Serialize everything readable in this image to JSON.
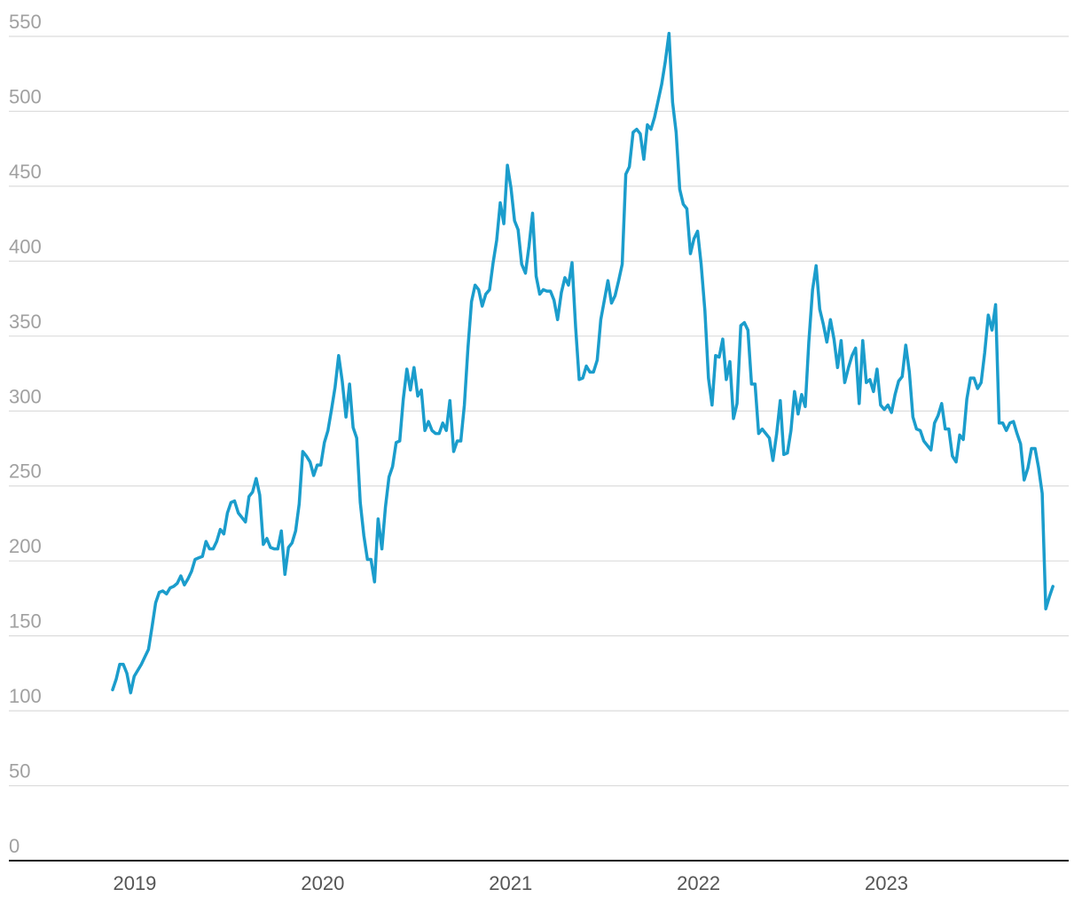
{
  "chart_data": {
    "type": "line",
    "x": [
      2018.882,
      2018.901,
      2018.92,
      2018.939,
      2018.958,
      2018.978,
      2018.997,
      2019.016,
      2019.035,
      2019.054,
      2019.073,
      2019.092,
      2019.111,
      2019.13,
      2019.149,
      2019.169,
      2019.188,
      2019.207,
      2019.226,
      2019.245,
      2019.264,
      2019.283,
      2019.302,
      2019.321,
      2019.34,
      2019.36,
      2019.379,
      2019.398,
      2019.417,
      2019.436,
      2019.455,
      2019.474,
      2019.493,
      2019.512,
      2019.531,
      2019.551,
      2019.57,
      2019.589,
      2019.608,
      2019.627,
      2019.646,
      2019.665,
      2019.684,
      2019.703,
      2019.722,
      2019.742,
      2019.761,
      2019.78,
      2019.799,
      2019.818,
      2019.837,
      2019.856,
      2019.875,
      2019.894,
      2019.913,
      2019.933,
      2019.952,
      2019.971,
      2019.99,
      2020.009,
      2020.028,
      2020.047,
      2020.066,
      2020.085,
      2020.104,
      2020.124,
      2020.143,
      2020.162,
      2020.181,
      2020.2,
      2020.219,
      2020.238,
      2020.257,
      2020.276,
      2020.295,
      2020.315,
      2020.334,
      2020.353,
      2020.372,
      2020.391,
      2020.41,
      2020.429,
      2020.448,
      2020.467,
      2020.486,
      2020.506,
      2020.525,
      2020.544,
      2020.563,
      2020.582,
      2020.601,
      2020.62,
      2020.639,
      2020.658,
      2020.677,
      2020.697,
      2020.716,
      2020.735,
      2020.754,
      2020.773,
      2020.792,
      2020.811,
      2020.83,
      2020.849,
      2020.868,
      2020.888,
      2020.907,
      2020.926,
      2020.945,
      2020.964,
      2020.983,
      2021.002,
      2021.021,
      2021.04,
      2021.059,
      2021.079,
      2021.098,
      2021.117,
      2021.136,
      2021.155,
      2021.174,
      2021.193,
      2021.212,
      2021.231,
      2021.25,
      2021.27,
      2021.289,
      2021.308,
      2021.327,
      2021.346,
      2021.365,
      2021.384,
      2021.403,
      2021.422,
      2021.441,
      2021.461,
      2021.48,
      2021.499,
      2021.518,
      2021.537,
      2021.556,
      2021.575,
      2021.594,
      2021.613,
      2021.632,
      2021.652,
      2021.671,
      2021.69,
      2021.709,
      2021.728,
      2021.747,
      2021.766,
      2021.785,
      2021.804,
      2021.823,
      2021.843,
      2021.862,
      2021.881,
      2021.9,
      2021.919,
      2021.938,
      2021.957,
      2021.976,
      2021.995,
      2022.014,
      2022.034,
      2022.053,
      2022.072,
      2022.091,
      2022.11,
      2022.129,
      2022.148,
      2022.167,
      2022.186,
      2022.205,
      2022.225,
      2022.244,
      2022.263,
      2022.282,
      2022.301,
      2022.32,
      2022.339,
      2022.358,
      2022.377,
      2022.396,
      2022.416,
      2022.435,
      2022.454,
      2022.473,
      2022.492,
      2022.511,
      2022.53,
      2022.549,
      2022.568,
      2022.587,
      2022.607,
      2022.626,
      2022.645,
      2022.664,
      2022.683,
      2022.702,
      2022.721,
      2022.74,
      2022.759,
      2022.778,
      2022.798,
      2022.817,
      2022.836,
      2022.855,
      2022.874,
      2022.893,
      2022.912,
      2022.931,
      2022.95,
      2022.969,
      2022.989,
      2023.008,
      2023.027,
      2023.046,
      2023.065,
      2023.084,
      2023.103,
      2023.122,
      2023.141,
      2023.16,
      2023.18,
      2023.199,
      2023.218,
      2023.237,
      2023.256,
      2023.275,
      2023.294,
      2023.313,
      2023.332,
      2023.351,
      2023.371,
      2023.39,
      2023.409,
      2023.428,
      2023.447,
      2023.466,
      2023.485,
      2023.504,
      2023.523,
      2023.542,
      2023.562,
      2023.581,
      2023.6,
      2023.619,
      2023.638,
      2023.657,
      2023.676,
      2023.695,
      2023.714,
      2023.733,
      2023.753,
      2023.772,
      2023.791,
      2023.81,
      2023.829,
      2023.848,
      2023.867,
      2023.886
    ],
    "series": [
      {
        "color": "#1b9dcc",
        "values": [
          114,
          121,
          131,
          131,
          125,
          112,
          123,
          127,
          131,
          136,
          141,
          156,
          172,
          179,
          180,
          178,
          182,
          183,
          185,
          190,
          184,
          188,
          193,
          201,
          202,
          203,
          213,
          208,
          208,
          213,
          221,
          218,
          232,
          239,
          240,
          232,
          229,
          226,
          243,
          246,
          255,
          244,
          211,
          215,
          209,
          208,
          208,
          220,
          191,
          209,
          212,
          220,
          238,
          273,
          270,
          266,
          257,
          264,
          264,
          279,
          287,
          301,
          316,
          337,
          320,
          296,
          318,
          289,
          282,
          239,
          217,
          201,
          201,
          186,
          228,
          208,
          236,
          256,
          263,
          279,
          280,
          308,
          328,
          314,
          329,
          310,
          314,
          287,
          293,
          287,
          285,
          285,
          292,
          287,
          307,
          273,
          280,
          280,
          304,
          342,
          373,
          384,
          381,
          370,
          378,
          381,
          399,
          414,
          439,
          425,
          464,
          449,
          427,
          421,
          398,
          392,
          410,
          432,
          390,
          378,
          381,
          380,
          380,
          374,
          361,
          379,
          389,
          384,
          399,
          356,
          321,
          322,
          330,
          326,
          326,
          334,
          361,
          374,
          387,
          372,
          377,
          387,
          398,
          458,
          463,
          486,
          488,
          485,
          468,
          491,
          488,
          496,
          507,
          518,
          533,
          552,
          506,
          486,
          448,
          438,
          435,
          405,
          415,
          420,
          398,
          367,
          322,
          304,
          337,
          336,
          348,
          321,
          333,
          295,
          305,
          357,
          359,
          354,
          318,
          318,
          285,
          288,
          285,
          282,
          267,
          285,
          307,
          271,
          272,
          287,
          313,
          298,
          311,
          303,
          346,
          381,
          397,
          368,
          358,
          346,
          361,
          348,
          329,
          347,
          319,
          329,
          337,
          342,
          305,
          347,
          319,
          321,
          313,
          328,
          304,
          301,
          304,
          299,
          311,
          320,
          323,
          344,
          326,
          296,
          288,
          287,
          280,
          277,
          274,
          292,
          297,
          305,
          288,
          288,
          270,
          266,
          284,
          281,
          308,
          322,
          322,
          315,
          319,
          339,
          364,
          354,
          371,
          292,
          292,
          287,
          292,
          293,
          285,
          278,
          254,
          262,
          275,
          275,
          262,
          245,
          168,
          176,
          183
        ]
      }
    ],
    "xlim": [
      2018.33,
      2023.97
    ],
    "xticks": [
      2019,
      2020,
      2021,
      2022,
      2023
    ],
    "ylim": [
      0,
      550
    ],
    "yticks": [
      0,
      50,
      100,
      150,
      200,
      250,
      300,
      350,
      400,
      450,
      500,
      550
    ],
    "grid": true
  }
}
